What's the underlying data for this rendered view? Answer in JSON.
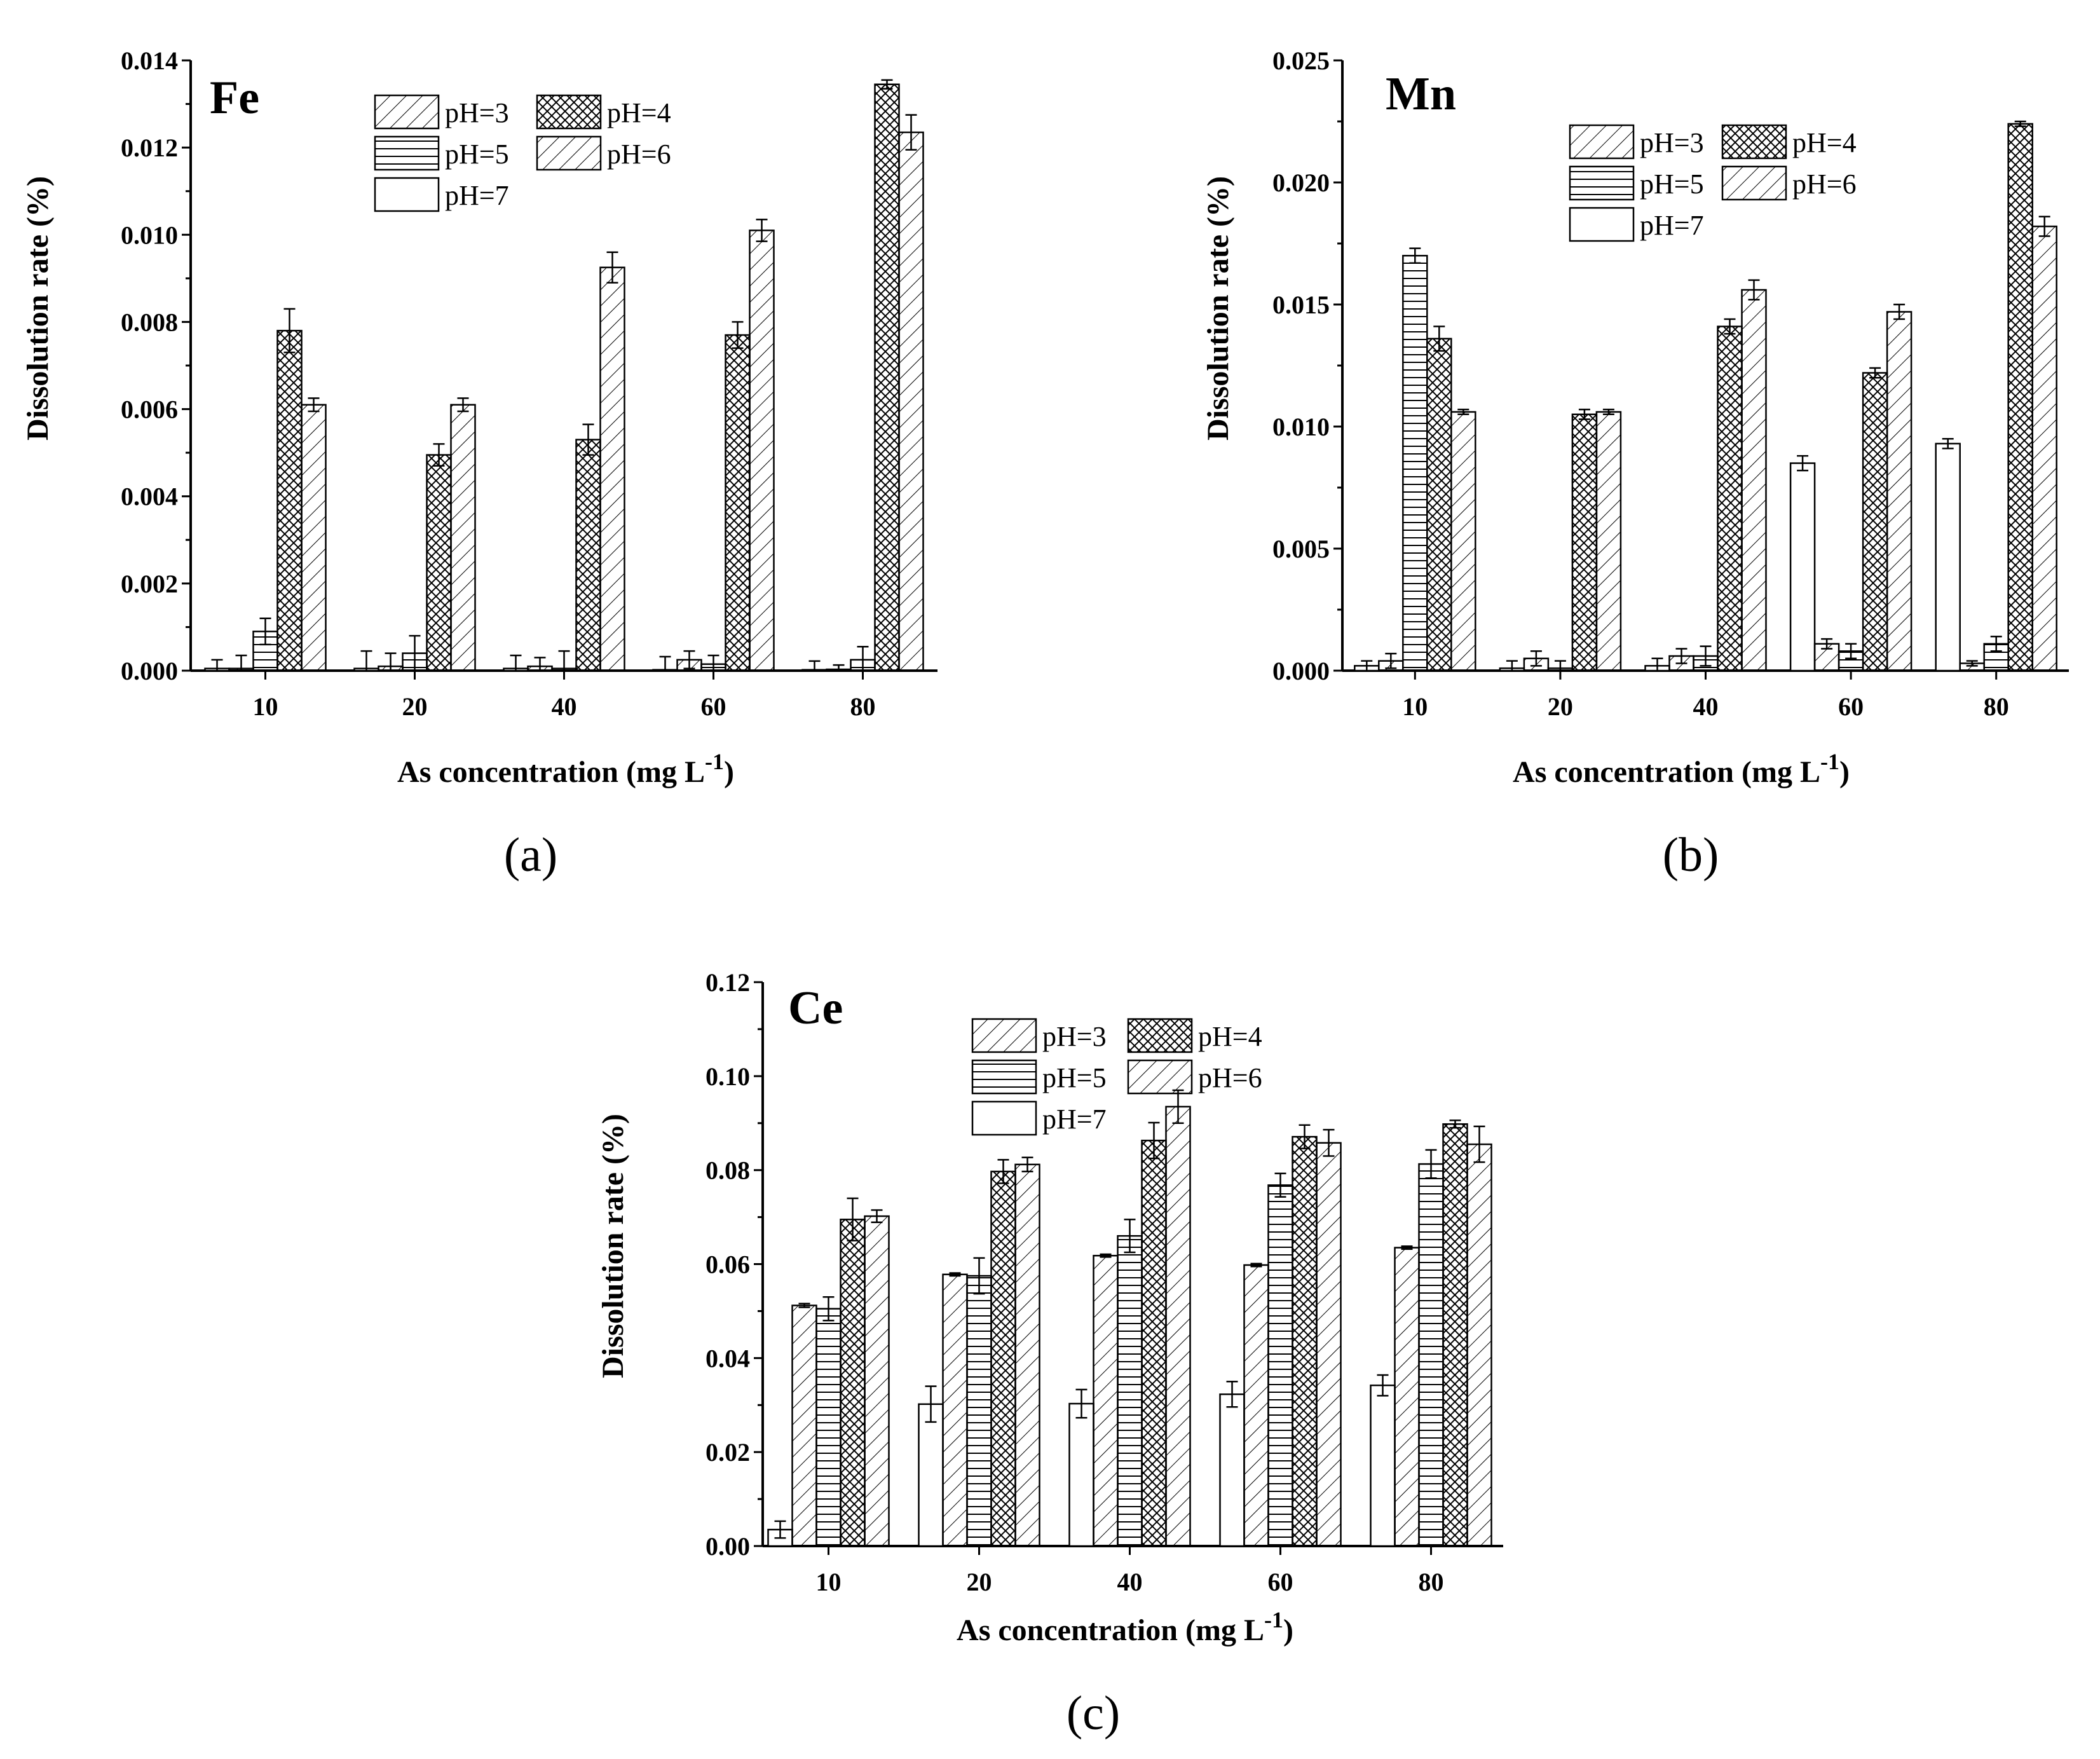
{
  "chart_data": [
    {
      "id": "a",
      "type": "bar",
      "title": "Fe",
      "panel_label": "(a)",
      "xlabel": "As concentration (mg L",
      "xlabel_sup": "-1",
      "xlabel_close": ")",
      "ylabel": "Dissolution rate (%)",
      "categories": [
        "10",
        "20",
        "40",
        "60",
        "80"
      ],
      "ylim": [
        0,
        0.014
      ],
      "yticks": [
        "0.000",
        "0.002",
        "0.004",
        "0.006",
        "0.008",
        "0.010",
        "0.012",
        "0.014"
      ],
      "legend_position": "top-center",
      "series": [
        {
          "name": "pH=7",
          "pattern": "none",
          "values": [
            5e-05,
            5e-05,
            5e-05,
            2e-05,
            2e-05
          ],
          "errors": [
            0.0002,
            0.0004,
            0.0003,
            0.0003,
            0.0002
          ]
        },
        {
          "name": "pH=3",
          "pattern": "diag",
          "values": [
            5e-05,
            0.0001,
            0.0001,
            0.00025,
            3e-05
          ],
          "errors": [
            0.0003,
            0.0003,
            0.0002,
            0.0002,
            0.0001
          ]
        },
        {
          "name": "pH=5",
          "pattern": "hlines",
          "values": [
            0.0009,
            0.0004,
            5e-05,
            0.00015,
            0.00025
          ],
          "errors": [
            0.0003,
            0.0004,
            0.0004,
            0.0002,
            0.0003
          ]
        },
        {
          "name": "pH=4",
          "pattern": "cross",
          "values": [
            0.0078,
            0.00495,
            0.0053,
            0.0077,
            0.01345
          ],
          "errors": [
            0.0005,
            0.00025,
            0.00035,
            0.0003,
            0.0001
          ]
        },
        {
          "name": "pH=6",
          "pattern": "diag",
          "values": [
            0.0061,
            0.0061,
            0.00925,
            0.0101,
            0.01235
          ],
          "errors": [
            0.00015,
            0.00015,
            0.00035,
            0.00025,
            0.0004
          ]
        }
      ],
      "legend": [
        {
          "name": "pH=3",
          "pattern": "diag"
        },
        {
          "name": "pH=4",
          "pattern": "cross"
        },
        {
          "name": "pH=5",
          "pattern": "hlines"
        },
        {
          "name": "pH=6",
          "pattern": "diag"
        },
        {
          "name": "pH=7",
          "pattern": "none"
        }
      ]
    },
    {
      "id": "b",
      "type": "bar",
      "title": "Mn",
      "panel_label": "(b)",
      "xlabel": "As concentration (mg L",
      "xlabel_sup": "-1",
      "xlabel_close": ")",
      "ylabel": "Dissolution rate (%)",
      "categories": [
        "10",
        "20",
        "40",
        "60",
        "80"
      ],
      "ylim": [
        0,
        0.025
      ],
      "yticks": [
        "0.000",
        "0.005",
        "0.010",
        "0.015",
        "0.020",
        "0.025"
      ],
      "legend_position": "top-right",
      "series": [
        {
          "name": "pH=7",
          "pattern": "none",
          "values": [
            0.0002,
            0.0001,
            0.0002,
            0.0085,
            0.0093
          ],
          "errors": [
            0.0002,
            0.0003,
            0.0003,
            0.0003,
            0.0002
          ]
        },
        {
          "name": "pH=3",
          "pattern": "diag",
          "values": [
            0.0004,
            0.0005,
            0.0006,
            0.0011,
            0.0003
          ],
          "errors": [
            0.0003,
            0.0003,
            0.0003,
            0.0002,
            0.0001
          ]
        },
        {
          "name": "pH=5",
          "pattern": "hlines",
          "values": [
            0.017,
            0.0001,
            0.0006,
            0.0008,
            0.0011
          ],
          "errors": [
            0.0003,
            0.0003,
            0.0004,
            0.0003,
            0.0003
          ]
        },
        {
          "name": "pH=4",
          "pattern": "cross",
          "values": [
            0.0136,
            0.0105,
            0.0141,
            0.0122,
            0.0224
          ],
          "errors": [
            0.0005,
            0.0002,
            0.0003,
            0.0002,
            0.0001
          ]
        },
        {
          "name": "pH=6",
          "pattern": "diag",
          "values": [
            0.0106,
            0.0106,
            0.0156,
            0.0147,
            0.0182
          ],
          "errors": [
            0.0001,
            0.0001,
            0.0004,
            0.0003,
            0.0004
          ]
        }
      ],
      "legend": [
        {
          "name": "pH=3",
          "pattern": "diag"
        },
        {
          "name": "pH=4",
          "pattern": "cross"
        },
        {
          "name": "pH=5",
          "pattern": "hlines"
        },
        {
          "name": "pH=6",
          "pattern": "diag"
        },
        {
          "name": "pH=7",
          "pattern": "none"
        }
      ]
    },
    {
      "id": "c",
      "type": "bar",
      "title": "Ce",
      "panel_label": "(c)",
      "xlabel": "As concentration (mg L",
      "xlabel_sup": "-1",
      "xlabel_close": ")",
      "ylabel": "Dissolution rate (%)",
      "categories": [
        "10",
        "20",
        "40",
        "60",
        "80"
      ],
      "ylim": [
        0,
        0.12
      ],
      "yticks": [
        "0.00",
        "0.02",
        "0.04",
        "0.06",
        "0.08",
        "0.10",
        "0.12"
      ],
      "legend_position": "top-center",
      "series": [
        {
          "name": "pH=7",
          "pattern": "none",
          "values": [
            0.0035,
            0.0302,
            0.0303,
            0.0323,
            0.0342
          ],
          "errors": [
            0.0018,
            0.0038,
            0.003,
            0.0027,
            0.0022
          ]
        },
        {
          "name": "pH=3",
          "pattern": "diag",
          "values": [
            0.0512,
            0.0578,
            0.0618,
            0.0598,
            0.0635
          ],
          "errors": [
            0.0004,
            0.0003,
            0.0003,
            0.0003,
            0.0003
          ]
        },
        {
          "name": "pH=5",
          "pattern": "hlines",
          "values": [
            0.0505,
            0.0575,
            0.066,
            0.0768,
            0.0813
          ],
          "errors": [
            0.0025,
            0.0038,
            0.0035,
            0.0025,
            0.003
          ]
        },
        {
          "name": "pH=4",
          "pattern": "cross",
          "values": [
            0.0695,
            0.0797,
            0.0863,
            0.0871,
            0.0898
          ],
          "errors": [
            0.0045,
            0.0025,
            0.0038,
            0.0025,
            0.0008
          ]
        },
        {
          "name": "pH=6",
          "pattern": "diag",
          "values": [
            0.0702,
            0.0812,
            0.0935,
            0.0858,
            0.0855
          ],
          "errors": [
            0.0013,
            0.0015,
            0.0035,
            0.0028,
            0.0038
          ]
        }
      ],
      "legend": [
        {
          "name": "pH=3",
          "pattern": "diag"
        },
        {
          "name": "pH=4",
          "pattern": "cross"
        },
        {
          "name": "pH=5",
          "pattern": "hlines"
        },
        {
          "name": "pH=6",
          "pattern": "diag"
        },
        {
          "name": "pH=7",
          "pattern": "none"
        }
      ]
    }
  ]
}
